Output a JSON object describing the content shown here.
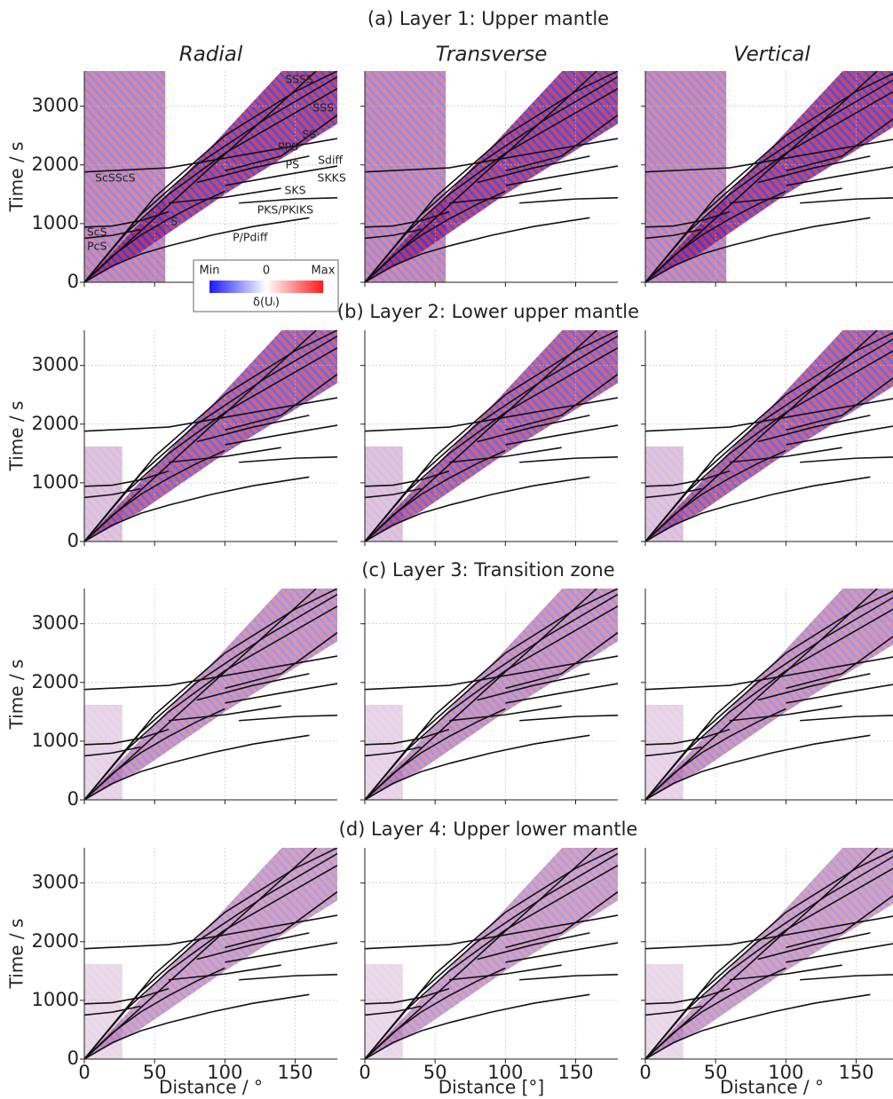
{
  "chart_data": {
    "type": "line",
    "row_titles": [
      "(a) Layer 1: Upper mantle",
      "(b) Layer 2: Lower upper mantle",
      "(c) Layer 3: Transition zone",
      "(d) Layer 4: Upper lower mantle"
    ],
    "column_titles": [
      "Radial",
      "Transverse",
      "Vertical"
    ],
    "ylabel": "Time / s",
    "xlabels": [
      "Distance / °",
      "Distance [°]",
      "Distance / °"
    ],
    "xlim": [
      0,
      180
    ],
    "ylim": [
      0,
      3600
    ],
    "xticks": [
      0,
      50,
      100,
      150
    ],
    "yticks": [
      0,
      1000,
      2000,
      3000
    ],
    "grid": true,
    "color": "#111111",
    "series": [
      {
        "x": [
          0,
          20,
          40,
          60,
          90,
          120,
          160
        ],
        "values": [
          0,
          280,
          480,
          620,
          800,
          950,
          1100
        ]
      },
      {
        "x": [
          0,
          165
        ],
        "values": [
          0,
          3600
        ]
      },
      {
        "x": [
          0,
          20,
          40,
          60,
          80,
          100
        ],
        "values": [
          0,
          450,
          800,
          1080,
          1330,
          1550
        ]
      },
      {
        "x": [
          0,
          30,
          60,
          100,
          140,
          180
        ],
        "values": [
          0,
          850,
          1500,
          2200,
          2750,
          3300
        ]
      },
      {
        "x": [
          0,
          40,
          80,
          130,
          180
        ],
        "values": [
          0,
          1150,
          2000,
          2800,
          3500
        ]
      },
      {
        "x": [
          0,
          50,
          100,
          150,
          180
        ],
        "values": [
          0,
          1450,
          2500,
          3250,
          3600
        ]
      },
      {
        "x": [
          0,
          60,
          120,
          180
        ],
        "values": [
          1880,
          1950,
          2200,
          2450
        ]
      },
      {
        "x": [
          0,
          20,
          40,
          60
        ],
        "values": [
          940,
          960,
          1050,
          1200
        ]
      },
      {
        "x": [
          0,
          20,
          40
        ],
        "values": [
          750,
          800,
          900
        ]
      },
      {
        "x": [
          60,
          100,
          140
        ],
        "values": [
          1350,
          1450,
          1600
        ]
      },
      {
        "x": [
          110,
          150,
          180
        ],
        "values": [
          1350,
          1420,
          1440
        ]
      },
      {
        "x": [
          100,
          140,
          180
        ],
        "values": [
          1650,
          1820,
          1980
        ]
      },
      {
        "x": [
          80,
          120,
          160
        ],
        "values": [
          1700,
          1950,
          2150
        ]
      },
      {
        "x": [
          100,
          140,
          180
        ],
        "values": [
          1900,
          2150,
          2850
        ]
      }
    ],
    "annotations": [
      {
        "text": "SSSS",
        "x": 153,
        "y": 3450,
        "color": "#222222"
      },
      {
        "text": "SSS",
        "x": 170,
        "y": 2965,
        "color": "#222222"
      },
      {
        "text": "SS",
        "x": 160,
        "y": 2510,
        "color": "#222222"
      },
      {
        "text": "PPS",
        "x": 145,
        "y": 2300,
        "color": "#222222"
      },
      {
        "text": "PS",
        "x": 148,
        "y": 2000,
        "color": "#222222"
      },
      {
        "text": "Sdiff",
        "x": 175,
        "y": 2070,
        "color": "#222222"
      },
      {
        "text": "SKKS",
        "x": 176,
        "y": 1770,
        "color": "#222222"
      },
      {
        "text": "SKS",
        "x": 150,
        "y": 1560,
        "color": "#222222"
      },
      {
        "text": "PKS/PKIKS",
        "x": 143,
        "y": 1225,
        "color": "#222222"
      },
      {
        "text": "P/Pdiff",
        "x": 118,
        "y": 756,
        "color": "#222222"
      },
      {
        "text": "S",
        "x": 64,
        "y": 1030,
        "color": "#222222"
      },
      {
        "text": "ScSScS",
        "x": 22,
        "y": 1770,
        "color": "#ffffff"
      },
      {
        "text": "ScS",
        "x": 9,
        "y": 850,
        "color": "#ffffff"
      },
      {
        "text": "PcS",
        "x": 9,
        "y": 605,
        "color": "#ffffff"
      }
    ],
    "colorbar": {
      "labels": [
        "Min",
        "0",
        "Max"
      ],
      "title": "δ(Uᵢ)",
      "colors": [
        "#1a1aff",
        "#ffffff",
        "#ff1a1a"
      ]
    }
  }
}
